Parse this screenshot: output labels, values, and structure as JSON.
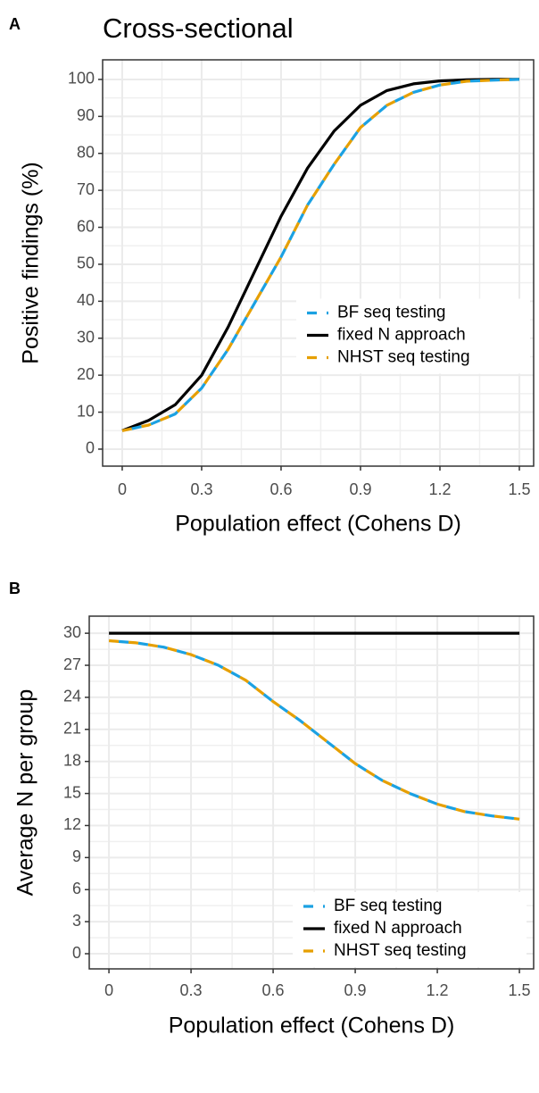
{
  "chart_data": [
    {
      "type": "line",
      "panel_label": "A",
      "title": "Cross-sectional",
      "x_label": "Population effect (Cohens D)",
      "y_label": "Positive findings (%)",
      "x": [
        0,
        0.1,
        0.2,
        0.3,
        0.4,
        0.5,
        0.6,
        0.7,
        0.8,
        0.9,
        1.0,
        1.1,
        1.2,
        1.3,
        1.4,
        1.5
      ],
      "series": [
        {
          "name": "BF seq testing",
          "color": "#1ba1e2",
          "dashed": true,
          "values": [
            5,
            6.5,
            9.5,
            16.5,
            27,
            39.5,
            52,
            66,
            77,
            87,
            93,
            96.5,
            98.5,
            99.5,
            99.8,
            100
          ]
        },
        {
          "name": "fixed N approach",
          "color": "#000000",
          "dashed": false,
          "values": [
            5,
            7.8,
            12,
            20,
            33,
            48,
            63,
            76,
            86,
            93,
            97,
            98.8,
            99.6,
            99.9,
            100,
            100
          ]
        },
        {
          "name": "NHST seq testing",
          "color": "#e69f00",
          "dashed": true,
          "values": [
            5,
            6.5,
            9.5,
            16.5,
            27,
            39.5,
            52,
            66,
            77,
            87,
            93,
            96.5,
            98.5,
            99.5,
            99.8,
            100
          ]
        }
      ],
      "xlim": [
        -0.074,
        1.554
      ],
      "ylim": [
        -4.6,
        105.3
      ],
      "xticks": [
        0,
        0.3,
        0.6,
        0.9,
        1.2,
        1.5
      ],
      "yticks": [
        0,
        10,
        20,
        30,
        40,
        50,
        60,
        70,
        80,
        90,
        100
      ],
      "grid": true,
      "legend_position": "right"
    },
    {
      "type": "line",
      "panel_label": "B",
      "x_label": "Population effect (Cohens D)",
      "y_label": "Average N per group",
      "x": [
        0,
        0.1,
        0.2,
        0.3,
        0.4,
        0.5,
        0.6,
        0.7,
        0.8,
        0.9,
        1.0,
        1.1,
        1.2,
        1.3,
        1.4,
        1.5
      ],
      "series": [
        {
          "name": "BF seq testing",
          "color": "#1ba1e2",
          "dashed": true,
          "values": [
            29.3,
            29.1,
            28.7,
            28,
            27,
            25.6,
            23.6,
            21.8,
            19.8,
            17.8,
            16.2,
            15,
            14,
            13.3,
            12.9,
            12.6
          ]
        },
        {
          "name": "fixed N approach",
          "color": "#000000",
          "dashed": false,
          "values": [
            30,
            30,
            30,
            30,
            30,
            30,
            30,
            30,
            30,
            30,
            30,
            30,
            30,
            30,
            30,
            30
          ]
        },
        {
          "name": "NHST seq testing",
          "color": "#e69f00",
          "dashed": true,
          "values": [
            29.3,
            29.1,
            28.7,
            28,
            27,
            25.6,
            23.6,
            21.8,
            19.8,
            17.8,
            16.2,
            15,
            14,
            13.3,
            12.9,
            12.6
          ]
        }
      ],
      "xlim": [
        -0.072,
        1.552
      ],
      "ylim": [
        -1.42,
        31.6
      ],
      "xticks": [
        0,
        0.3,
        0.6,
        0.9,
        1.2,
        1.5
      ],
      "yticks": [
        0,
        3,
        6,
        9,
        12,
        15,
        18,
        21,
        24,
        27,
        30
      ],
      "grid": true,
      "legend_position": "bottom-right"
    }
  ]
}
